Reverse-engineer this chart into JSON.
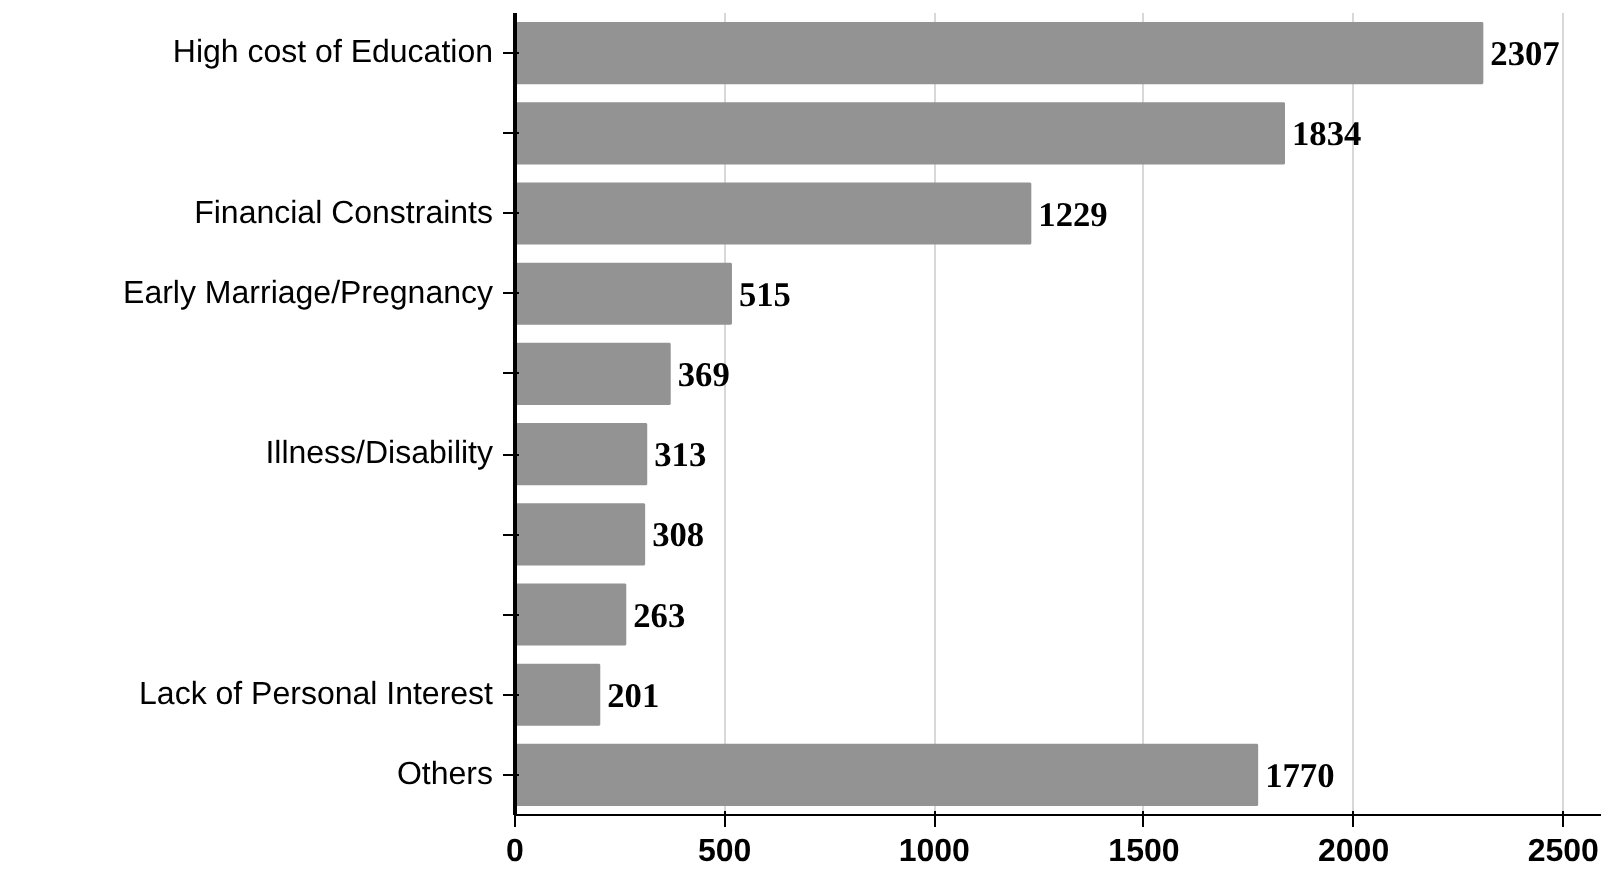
{
  "chart_data": {
    "type": "bar",
    "orientation": "horizontal",
    "categories": [
      "High cost of Education",
      null,
      "Financial Constraints",
      "Early Marriage/Pregnancy",
      null,
      "Illness/Disability",
      null,
      null,
      "Lack of Personal Interest",
      "Others"
    ],
    "values": [
      2307,
      1834,
      1229,
      515,
      369,
      313,
      308,
      263,
      201,
      1770
    ],
    "color": "#939393",
    "data_labels": true,
    "xlim": [
      0,
      2590
    ],
    "xticks": [
      0,
      500,
      1000,
      1500,
      2000,
      2500
    ],
    "grid": "x"
  }
}
